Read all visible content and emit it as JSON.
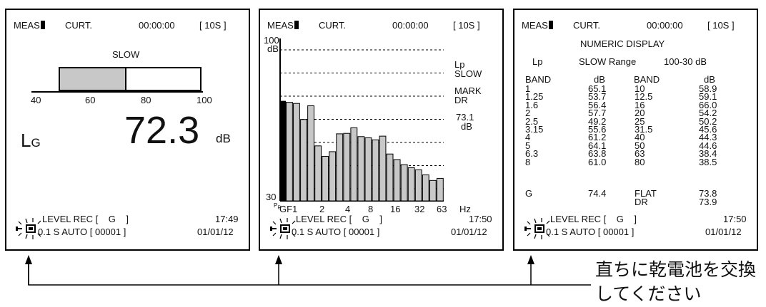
{
  "header": {
    "meas": "MEAS",
    "curt": "CURT.",
    "time": "00:00:00",
    "interval": "[ 10S ]"
  },
  "panel1": {
    "response": "SLOW",
    "bar_scale": [
      "40",
      "60",
      "80",
      "100"
    ],
    "bar_level_db": 72.3,
    "bar_range": [
      40,
      100
    ],
    "label_main": "L",
    "label_sub": "G",
    "value": "72.3",
    "unit": "dB",
    "footer": {
      "line1": "LEVEL REC [",
      "channel": "G",
      "line1_close": "]",
      "time": "17:49",
      "line2": "0.1 S  AUTO [ 00001 ]",
      "date": "01/01/12"
    }
  },
  "panel2": {
    "y_top": "100",
    "y_top_unit": "dB",
    "y_bottom": "30",
    "right_labels": {
      "lp": "Lp",
      "slow": "SLOW",
      "mark": "MARK",
      "dr": "DR",
      "value": "73.1",
      "unit": "dB"
    },
    "x_ticks": {
      "markers": "P",
      "markers_sub": "R",
      "gf1": "GF1",
      "t2": "2",
      "t4": "4",
      "t8": "8",
      "t16": "16",
      "t32": "32",
      "t63": "63",
      "hz": "Hz"
    },
    "footer": {
      "line1": "LEVEL REC [",
      "channel": "G",
      "line1_close": "]",
      "time": "17:50",
      "line2": "0.1 S  AUTO [ 00001 ]",
      "date": "01/01/12"
    }
  },
  "chart_data": {
    "type": "bar",
    "ylim": [
      30,
      100
    ],
    "title": "",
    "xlabel": "Hz",
    "ylabel": "dB",
    "main_bar": 73.1,
    "values": [
      72.5,
      72.0,
      65.1,
      71.0,
      53.7,
      49.2,
      51.2,
      58.9,
      59.1,
      61.5,
      57.7,
      57.2,
      56.3,
      57.9,
      50.2,
      47.8,
      45.6,
      44.3,
      43.4,
      41.2,
      38.8,
      39.7
    ]
  },
  "panel3": {
    "title": "NUMERIC  DISPLAY",
    "lp": "Lp",
    "range_text": "SLOW Range",
    "range_value": "100-30  dB",
    "col_band": "BAND",
    "col_db": "dB",
    "left_bands": [
      "1",
      "1.25",
      "1.6",
      "2",
      "2.5",
      "3.15",
      "4",
      "5",
      "6.3",
      "8"
    ],
    "left_db": [
      "65.1",
      "53.7",
      "56.4",
      "57.7",
      "49.2",
      "55.6",
      "61.2",
      "64.1",
      "63.8",
      "61.0"
    ],
    "right_bands": [
      "10",
      "12.5",
      "16",
      "20",
      "25",
      "31.5",
      "40",
      "50",
      "63",
      "80"
    ],
    "right_db": [
      "58.9",
      "59.1",
      "66.0",
      "54.2",
      "50.2",
      "45.6",
      "44.3",
      "44.6",
      "38.4",
      "38.5"
    ],
    "g_label": "G",
    "g_value": "74.4",
    "flat_label": "FLAT",
    "flat_value": "73.8",
    "dr_label": "DR",
    "dr_value": "73.9",
    "footer": {
      "line1": "LEVEL REC [",
      "channel": "G",
      "line1_close": "]",
      "time": "17:50",
      "line2": "0.1 S  AUTO [ 00001 ]",
      "date": "01/01/12"
    }
  },
  "callout": {
    "line1": "直ちに乾電池を交換",
    "line2": "してください"
  }
}
